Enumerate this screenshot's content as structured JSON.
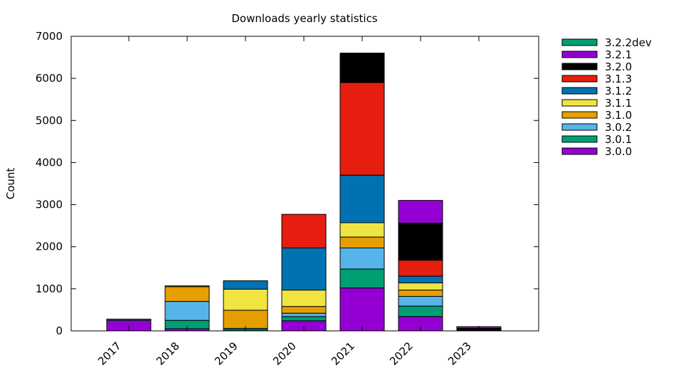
{
  "chart_data": {
    "type": "bar",
    "stacked": true,
    "title": "Downloads yearly statistics",
    "xlabel": "",
    "ylabel": "Count",
    "ylim": [
      0,
      7000
    ],
    "yticks": [
      0,
      1000,
      2000,
      3000,
      4000,
      5000,
      6000,
      7000
    ],
    "categories": [
      "2017",
      "2018",
      "2019",
      "2020",
      "2021",
      "2022",
      "2023"
    ],
    "legend_position": "outside-top-right",
    "series": [
      {
        "name": "3.0.0",
        "color": "#9400d3",
        "values": [
          250,
          50,
          0,
          240,
          1020,
          340,
          0
        ]
      },
      {
        "name": "3.0.1",
        "color": "#009e73",
        "values": [
          30,
          200,
          30,
          100,
          450,
          250,
          0
        ]
      },
      {
        "name": "3.0.2",
        "color": "#56b4e9",
        "values": [
          0,
          450,
          30,
          80,
          500,
          230,
          0
        ]
      },
      {
        "name": "3.1.0",
        "color": "#e69f00",
        "values": [
          0,
          350,
          430,
          160,
          260,
          150,
          0
        ]
      },
      {
        "name": "3.1.1",
        "color": "#f0e442",
        "values": [
          0,
          20,
          500,
          390,
          340,
          170,
          0
        ]
      },
      {
        "name": "3.1.2",
        "color": "#0072b2",
        "values": [
          0,
          0,
          200,
          1000,
          1130,
          160,
          0
        ]
      },
      {
        "name": "3.1.3",
        "color": "#e51e10",
        "values": [
          0,
          0,
          0,
          800,
          2200,
          380,
          0
        ]
      },
      {
        "name": "3.2.0",
        "color": "#000000",
        "values": [
          0,
          0,
          0,
          0,
          700,
          880,
          60
        ]
      },
      {
        "name": "3.2.1",
        "color": "#9400d3",
        "values": [
          0,
          0,
          0,
          0,
          0,
          540,
          40
        ]
      },
      {
        "name": "3.2.2dev",
        "color": "#009e73",
        "values": [
          0,
          0,
          0,
          0,
          0,
          0,
          0
        ]
      }
    ],
    "grid": false
  }
}
